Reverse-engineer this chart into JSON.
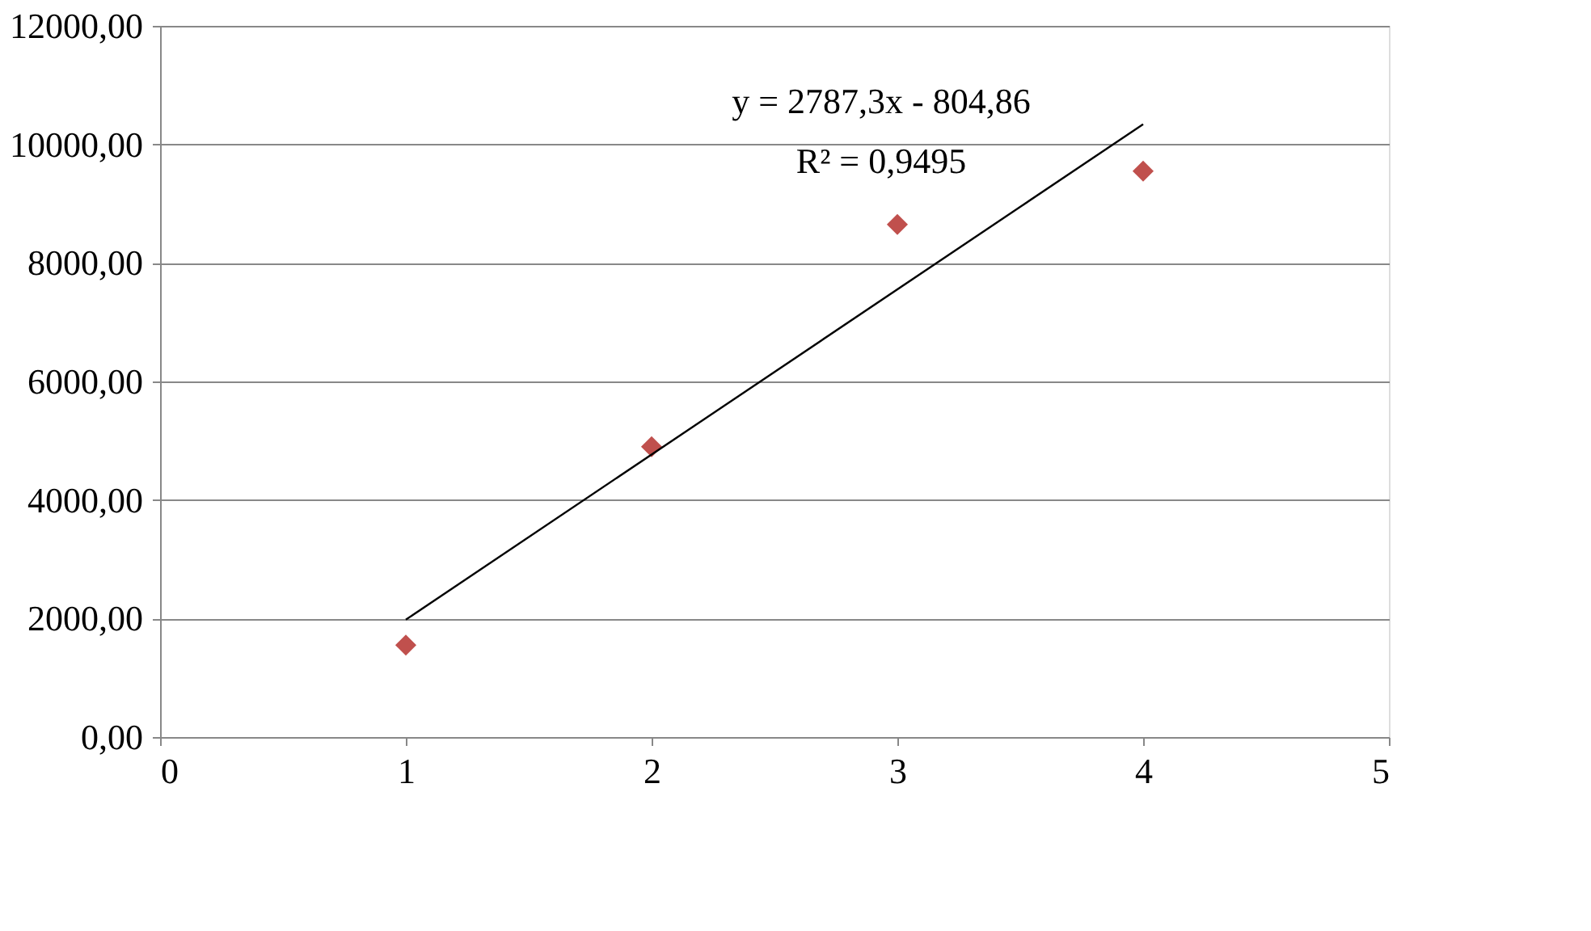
{
  "chart_data": {
    "type": "scatter",
    "x": [
      1,
      2,
      3,
      4
    ],
    "series": [
      {
        "color": "#c0504d",
        "values": [
          1550,
          4900,
          8650,
          9550
        ]
      },
      {
        "type": "line",
        "color": "#000000",
        "marker": "none",
        "line_style": "solid",
        "x": [
          1,
          4
        ],
        "values": [
          1980,
          10340
        ]
      }
    ],
    "marker": "diamond",
    "grid": "y",
    "legend": false,
    "xlim": [
      0,
      5
    ],
    "xticks": [
      0,
      1,
      2,
      3,
      4,
      5
    ],
    "ylim": [
      0,
      12000
    ],
    "yticks": [
      {
        "value": 0,
        "label": "0,00"
      },
      {
        "value": 2000,
        "label": "2000,00"
      },
      {
        "value": 4000,
        "label": "4000,00"
      },
      {
        "value": 6000,
        "label": "6000,00"
      },
      {
        "value": 8000,
        "label": "8000,00"
      },
      {
        "value": 10000,
        "label": "10000,00"
      },
      {
        "value": 12000,
        "label": "12000,00"
      }
    ],
    "annotations": [
      "y = 2787,3x - 804,86",
      "R² = 0,9495"
    ]
  }
}
